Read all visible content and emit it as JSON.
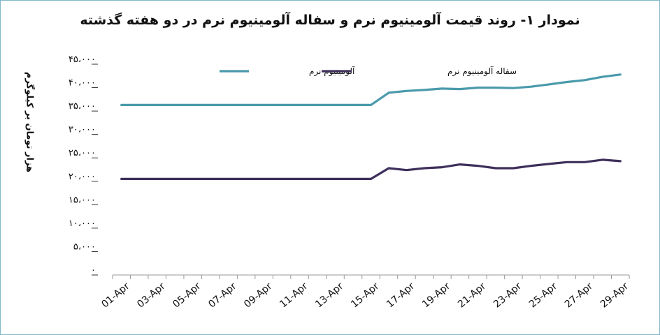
{
  "chart_data": {
    "type": "line",
    "title": "نمودار ۱- روند قیمت آلومینیوم نرم و سفاله آلومینیوم نرم در دو هفته گذشته",
    "xlabel": "",
    "ylabel": "هزار تومان بر کیلوگرم",
    "ylim": [
      0,
      45000
    ],
    "yticks": [
      0,
      5000,
      10000,
      15000,
      20000,
      25000,
      30000,
      35000,
      40000,
      45000
    ],
    "ytick_labels": [
      "۰",
      "۵،۰۰۰",
      "۱۰،۰۰۰",
      "۱۵،۰۰۰",
      "۲۰،۰۰۰",
      "۲۵،۰۰۰",
      "۳۰،۰۰۰",
      "۳۵،۰۰۰",
      "۴۰،۰۰۰",
      "۴۵،۰۰۰"
    ],
    "x": [
      "01-Apr",
      "02-Apr",
      "03-Apr",
      "04-Apr",
      "05-Apr",
      "06-Apr",
      "07-Apr",
      "08-Apr",
      "09-Apr",
      "10-Apr",
      "11-Apr",
      "12-Apr",
      "13-Apr",
      "14-Apr",
      "15-Apr",
      "16-Apr",
      "17-Apr",
      "18-Apr",
      "19-Apr",
      "20-Apr",
      "21-Apr",
      "22-Apr",
      "23-Apr",
      "24-Apr",
      "25-Apr",
      "26-Apr",
      "27-Apr",
      "28-Apr",
      "29-Apr"
    ],
    "xtick_labels": [
      "01-Apr",
      "03-Apr",
      "05-Apr",
      "07-Apr",
      "09-Apr",
      "11-Apr",
      "13-Apr",
      "15-Apr",
      "17-Apr",
      "19-Apr",
      "21-Apr",
      "23-Apr",
      "25-Apr",
      "27-Apr",
      "29-Apr"
    ],
    "grid": false,
    "legend_position": "top",
    "series": [
      {
        "name": "آلومینیوم نرم",
        "color": "#4a9aac",
        "values": [
          36300,
          36300,
          36300,
          36300,
          36300,
          36300,
          36300,
          36300,
          36300,
          36300,
          36300,
          36300,
          36300,
          36300,
          36300,
          38900,
          39300,
          39500,
          39800,
          39700,
          40000,
          40000,
          39900,
          40200,
          40700,
          41200,
          41600,
          42300,
          42800
        ]
      },
      {
        "name": "سفاله آلومینیوم نرم",
        "color": "#3e2f5b",
        "values": [
          20500,
          20500,
          20500,
          20500,
          20500,
          20500,
          20500,
          20500,
          20500,
          20500,
          20500,
          20500,
          20500,
          20500,
          20500,
          22800,
          22400,
          22800,
          23000,
          23600,
          23300,
          22800,
          22800,
          23300,
          23700,
          24100,
          24100,
          24600,
          24300
        ]
      }
    ]
  }
}
